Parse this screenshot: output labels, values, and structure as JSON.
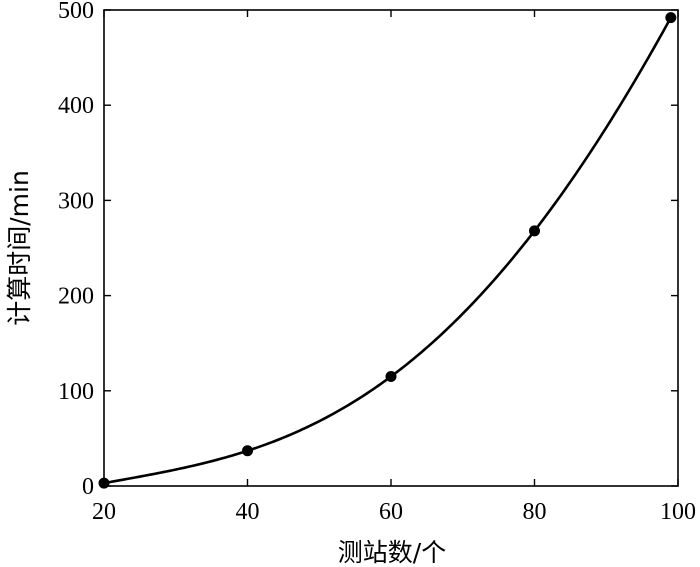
{
  "chart_data": {
    "type": "line",
    "xlabel": "测站数/个",
    "ylabel": "计算时间/min",
    "xlim": [
      20,
      100
    ],
    "ylim": [
      0,
      500
    ],
    "x_ticks": [
      20,
      40,
      60,
      80,
      100
    ],
    "y_ticks": [
      0,
      100,
      200,
      300,
      400,
      500
    ],
    "grid": false,
    "series": [
      {
        "points": [
          {
            "x": 20,
            "y": 3
          },
          {
            "x": 40,
            "y": 37
          },
          {
            "x": 60,
            "y": 115
          },
          {
            "x": 80,
            "y": 268
          },
          {
            "x": 99,
            "y": 492
          }
        ],
        "fit_curve": true,
        "color": "#000000"
      }
    ]
  }
}
